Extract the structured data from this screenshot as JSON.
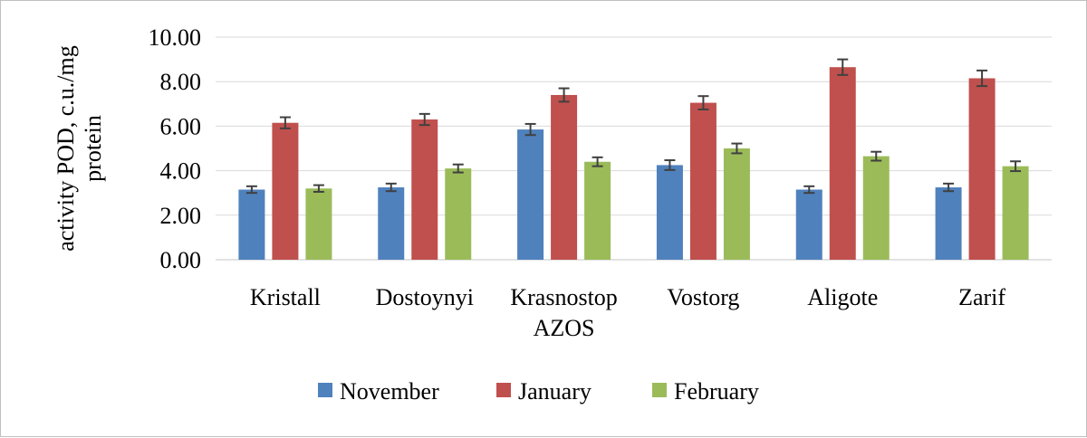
{
  "chart_data": {
    "type": "bar",
    "title": "",
    "xlabel": "",
    "ylabel_lines": [
      "activity POD, c.u./mg",
      "protein"
    ],
    "ylim": [
      0,
      10
    ],
    "ytick_step": 2,
    "ytick_labels": [
      "0.00",
      "2.00",
      "4.00",
      "6.00",
      "8.00",
      "10.00"
    ],
    "grid": true,
    "legend_position": "bottom",
    "categories": [
      [
        "Kristall"
      ],
      [
        "Dostoynyi"
      ],
      [
        "Krasnostop",
        "AZOS"
      ],
      [
        "Vostorg"
      ],
      [
        "Aligote"
      ],
      [
        "Zarif"
      ]
    ],
    "series": [
      {
        "name": "November",
        "color": "#4f81bd",
        "values": [
          3.15,
          3.25,
          5.85,
          4.25,
          3.15,
          3.25
        ],
        "errors": [
          0.15,
          0.17,
          0.25,
          0.22,
          0.15,
          0.17
        ]
      },
      {
        "name": "January",
        "color": "#c0504d",
        "values": [
          6.15,
          6.3,
          7.4,
          7.05,
          8.65,
          8.15
        ],
        "errors": [
          0.25,
          0.25,
          0.3,
          0.3,
          0.35,
          0.35
        ]
      },
      {
        "name": "February",
        "color": "#9bbb59",
        "values": [
          3.2,
          4.1,
          4.4,
          5.0,
          4.65,
          4.2
        ],
        "errors": [
          0.15,
          0.18,
          0.2,
          0.22,
          0.2,
          0.22
        ]
      }
    ],
    "error_bar_color": "#404040",
    "grid_color": "#d9d9d9"
  }
}
